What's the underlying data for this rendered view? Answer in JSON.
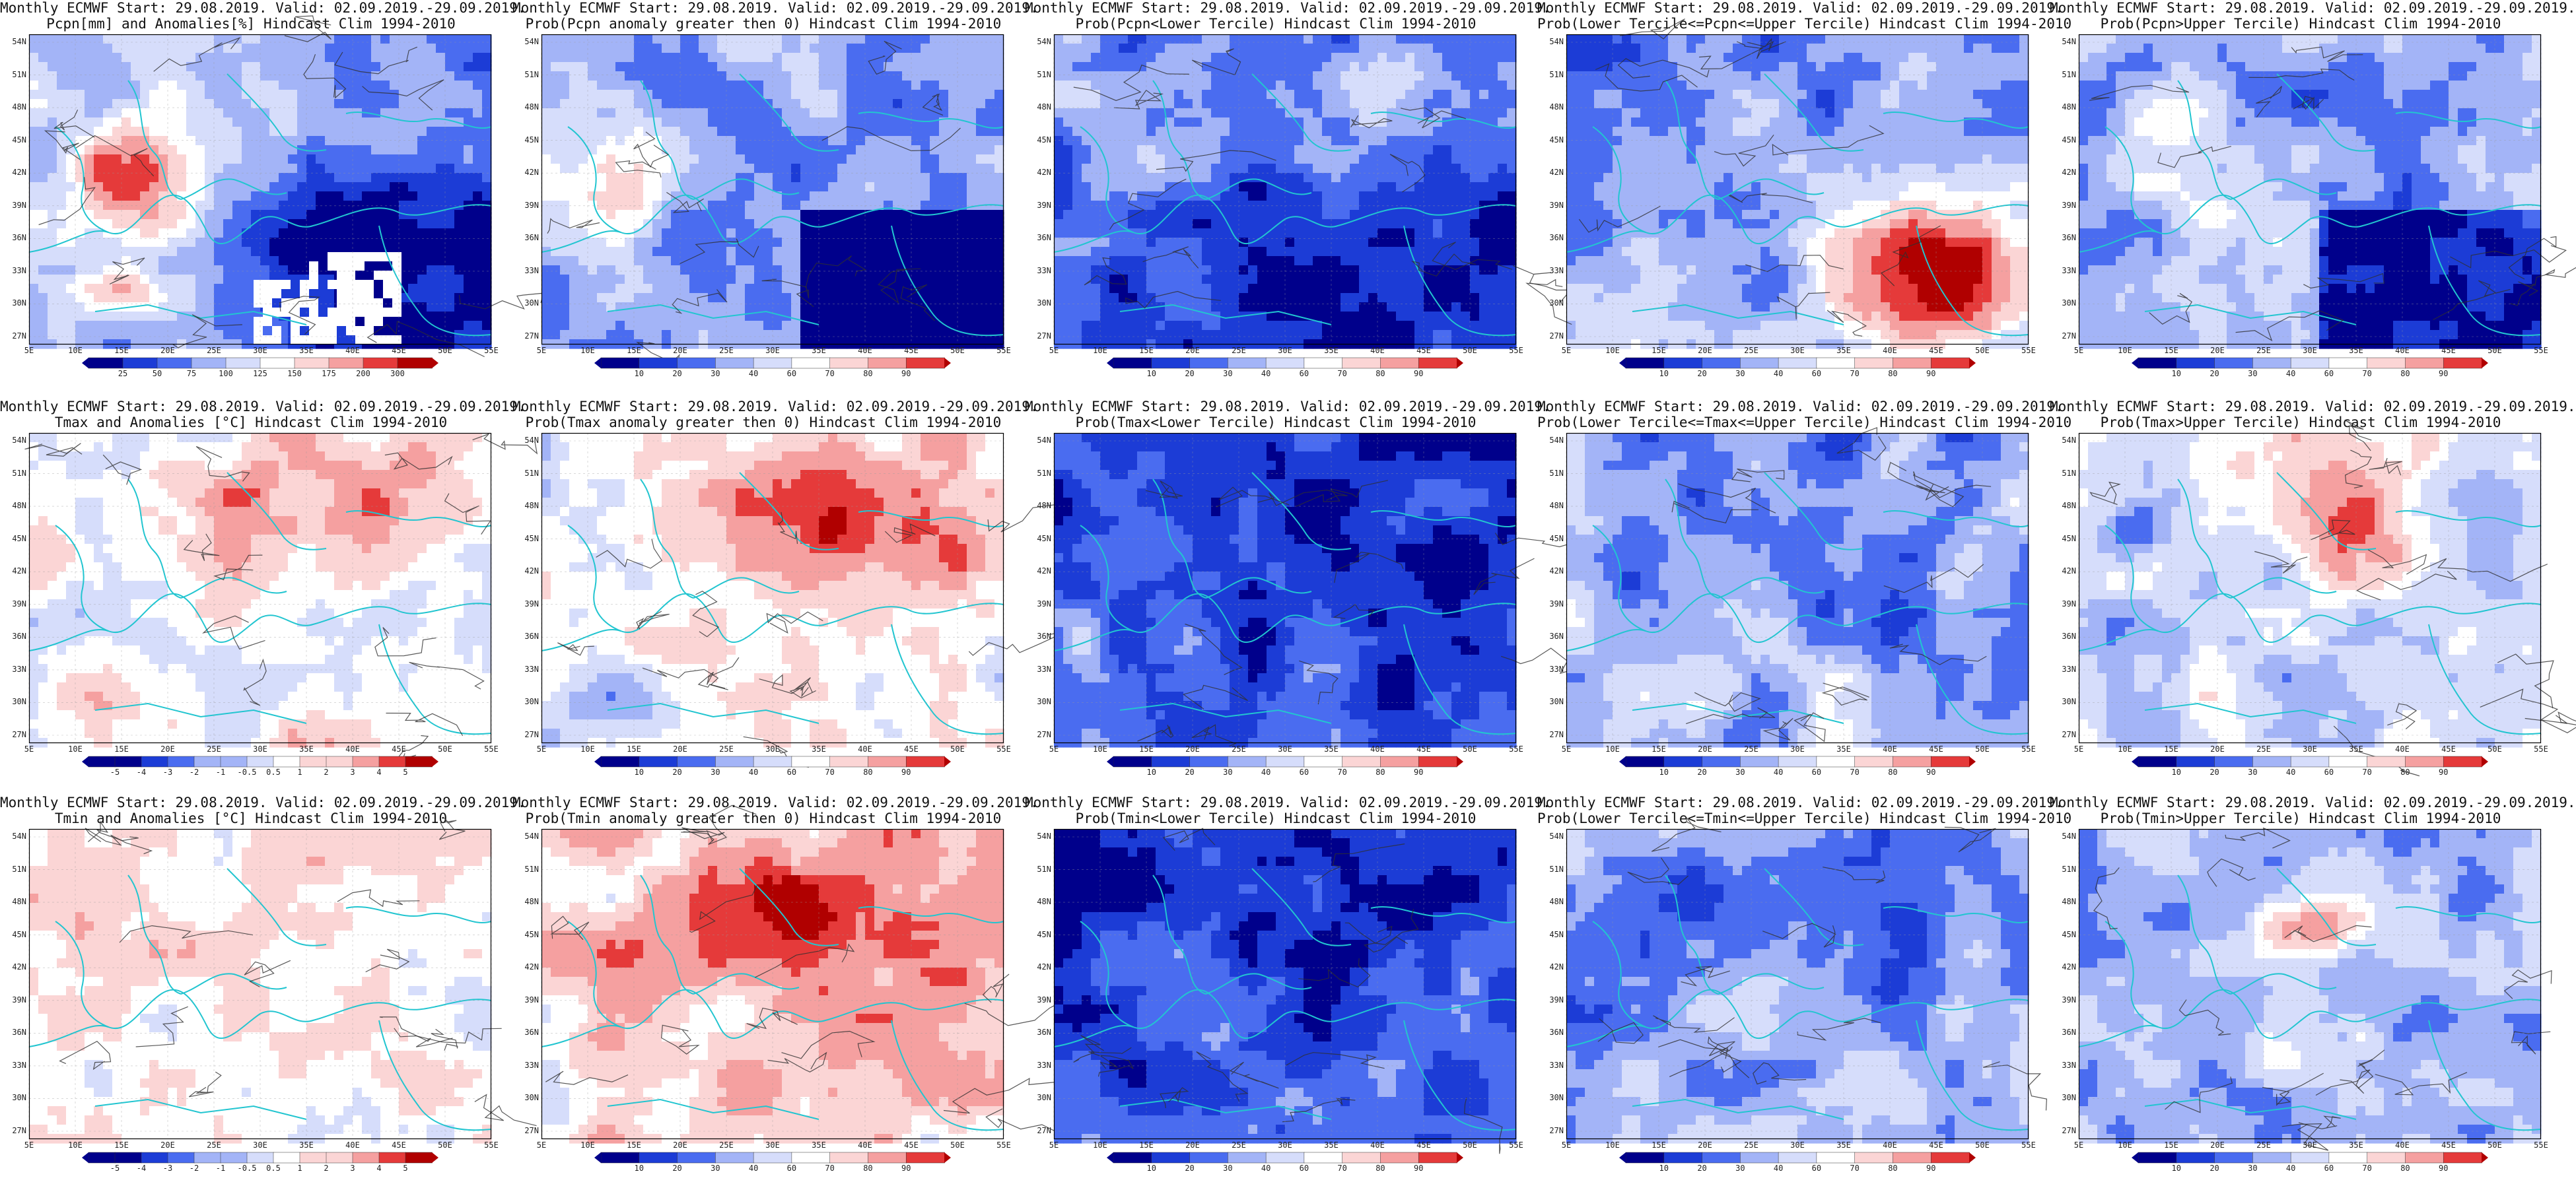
{
  "colors": {
    "deep_blue": "#00008b",
    "blue": "#1c3cd6",
    "mid_blue": "#4a6cf0",
    "light_blue": "#a3b4f7",
    "pale_blue": "#d6ddfb",
    "white": "#ffffff",
    "pale_red": "#fbd5d5",
    "light_red": "#f5a0a0",
    "red": "#e53a3a",
    "deep_red": "#b00000",
    "coast": "#22c5d0",
    "contour": "#303030"
  },
  "latitude_labels": [
    "54N",
    "51N",
    "48N",
    "45N",
    "42N",
    "39N",
    "36N",
    "33N",
    "30N",
    "27N"
  ],
  "longitude_labels": [
    "5E",
    "10E",
    "15E",
    "20E",
    "25E",
    "30E",
    "35E",
    "40E",
    "45E",
    "50E",
    "55E"
  ],
  "colorbars": {
    "precip_anom": [
      "25",
      "50",
      "75",
      "100",
      "125",
      "150",
      "175",
      "200",
      "300"
    ],
    "prob": [
      "10",
      "20",
      "30",
      "40",
      "60",
      "70",
      "80",
      "90"
    ],
    "temp_anom": [
      "-5",
      "-4",
      "-3",
      "-2",
      "-1",
      "-0.5",
      "0.5",
      "1",
      "2",
      "3",
      "4",
      "5"
    ]
  },
  "panels": [
    {
      "line1": "Monthly ECMWF Start: 29.08.2019. Valid: 02.09.2019.-29.09.2019.",
      "line2": "Pcpn[mm] and Anomalies[%] Hindcast Clim 1994-2010",
      "cbar": "precip_anom",
      "pattern": 0
    },
    {
      "line1": "Monthly ECMWF Start: 29.08.2019. Valid: 02.09.2019.-29.09.2019.",
      "line2": "Prob(Pcpn anomaly greater then 0) Hindcast Clim 1994-2010",
      "cbar": "prob",
      "pattern": 1
    },
    {
      "line1": "Monthly ECMWF Start: 29.08.2019. Valid: 02.09.2019.-29.09.2019.",
      "line2": "Prob(Pcpn<Lower Tercile) Hindcast Clim 1994-2010",
      "cbar": "prob",
      "pattern": 2
    },
    {
      "line1": "Monthly ECMWF Start: 29.08.2019. Valid: 02.09.2019.-29.09.2019.",
      "line2": "Prob(Lower Tercile<=Pcpn<=Upper Tercile) Hindcast Clim 1994-2010",
      "cbar": "prob",
      "pattern": 3
    },
    {
      "line1": "Monthly ECMWF Start: 29.08.2019. Valid: 02.09.2019.-29.09.2019.",
      "line2": "Prob(Pcpn>Upper Tercile) Hindcast Clim 1994-2010",
      "cbar": "prob",
      "pattern": 4
    },
    {
      "line1": "Monthly ECMWF Start: 29.08.2019. Valid: 02.09.2019.-29.09.2019.",
      "line2": "Tmax and Anomalies [°C] Hindcast Clim 1994-2010",
      "cbar": "temp_anom",
      "pattern": 5
    },
    {
      "line1": "Monthly ECMWF Start: 29.08.2019. Valid: 02.09.2019.-29.09.2019.",
      "line2": "Prob(Tmax anomaly greater then 0) Hindcast Clim 1994-2010",
      "cbar": "prob",
      "pattern": 6
    },
    {
      "line1": "Monthly ECMWF Start: 29.08.2019. Valid: 02.09.2019.-29.09.2019.",
      "line2": "Prob(Tmax<Lower Tercile) Hindcast Clim 1994-2010",
      "cbar": "prob",
      "pattern": 7
    },
    {
      "line1": "Monthly ECMWF Start: 29.08.2019. Valid: 02.09.2019.-29.09.2019.",
      "line2": "Prob(Lower Tercile<=Tmax<=Upper Tercile) Hindcast Clim 1994-2010",
      "cbar": "prob",
      "pattern": 8
    },
    {
      "line1": "Monthly ECMWF Start: 29.08.2019. Valid: 02.09.2019.-29.09.2019.",
      "line2": "Prob(Tmax>Upper Tercile) Hindcast Clim 1994-2010",
      "cbar": "prob",
      "pattern": 9
    },
    {
      "line1": "Monthly ECMWF Start: 29.08.2019. Valid: 02.09.2019.-29.09.2019.",
      "line2": "Tmin and Anomalies [°C] Hindcast Clim 1994-2010",
      "cbar": "temp_anom",
      "pattern": 10
    },
    {
      "line1": "Monthly ECMWF Start: 29.08.2019. Valid: 02.09.2019.-29.09.2019.",
      "line2": "Prob(Tmin anomaly greater then 0) Hindcast Clim 1994-2010",
      "cbar": "prob",
      "pattern": 11
    },
    {
      "line1": "Monthly ECMWF Start: 29.08.2019. Valid: 02.09.2019.-29.09.2019.",
      "line2": "Prob(Tmin<Lower Tercile) Hindcast Clim 1994-2010",
      "cbar": "prob",
      "pattern": 12
    },
    {
      "line1": "Monthly ECMWF Start: 29.08.2019. Valid: 02.09.2019.-29.09.2019.",
      "line2": "Prob(Lower Tercile<=Tmin<=Upper Tercile) Hindcast Clim 1994-2010",
      "cbar": "prob",
      "pattern": 13
    },
    {
      "line1": "Monthly ECMWF Start: 29.08.2019. Valid: 02.09.2019.-29.09.2019.",
      "line2": "Prob(Tmin>Upper Tercile) Hindcast Clim 1994-2010",
      "cbar": "prob",
      "pattern": 14
    }
  ]
}
